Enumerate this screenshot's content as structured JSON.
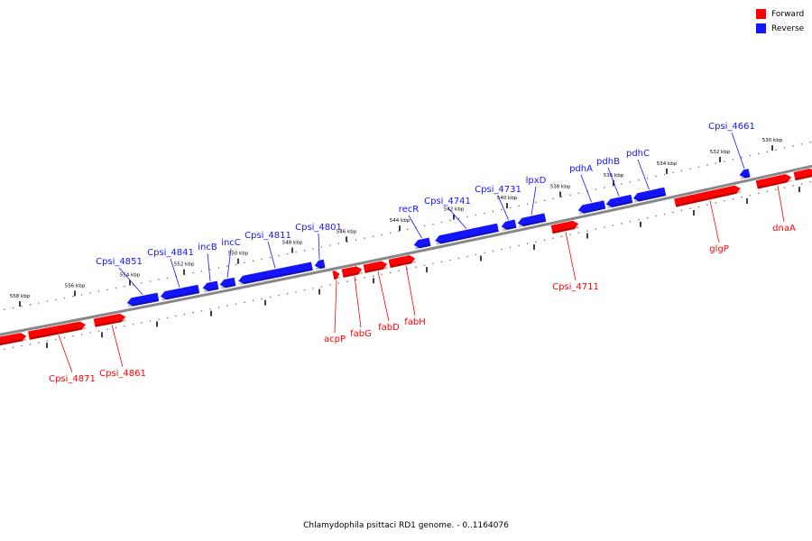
{
  "caption": "Chlamydophila psittaci RD1 genome. - 0..1164076",
  "legend": [
    {
      "label": "Forward",
      "color": "#ff0000"
    },
    {
      "label": "Reverse",
      "color": "#1414ff"
    }
  ],
  "colors": {
    "forward": "#ff0000",
    "reverse": "#1414ff",
    "backbone": "#888888"
  },
  "ticks": [
    "558 kbp",
    "556 kbp",
    "554 kbp",
    "552 kbp",
    "550 kbp",
    "548 kbp",
    "546 kbp",
    "544 kbp",
    "542 kbp",
    "540 kbp",
    "538 kbp",
    "536 kbp",
    "534 kbp",
    "532 kbp",
    "530 kbp"
  ],
  "genes_reverse": [
    {
      "label": "Cpsi_4851"
    },
    {
      "label": "Cpsi_4841"
    },
    {
      "label": "incB"
    },
    {
      "label": "incC"
    },
    {
      "label": "Cpsi_4811"
    },
    {
      "label": "Cpsi_4801"
    },
    {
      "label": "recR"
    },
    {
      "label": "Cpsi_4741"
    },
    {
      "label": "Cpsi_4731"
    },
    {
      "label": "lpxD"
    },
    {
      "label": "pdhA"
    },
    {
      "label": "pdhB"
    },
    {
      "label": "pdhC"
    },
    {
      "label": "Cpsi_4661"
    }
  ],
  "genes_forward": [
    {
      "label": "Cpsi_4871"
    },
    {
      "label": "Cpsi_4861"
    },
    {
      "label": "acpP"
    },
    {
      "label": "fabG"
    },
    {
      "label": "fabD"
    },
    {
      "label": "fabH"
    },
    {
      "label": "Cpsi_4711"
    },
    {
      "label": "glgP"
    },
    {
      "label": "dnaA"
    }
  ]
}
